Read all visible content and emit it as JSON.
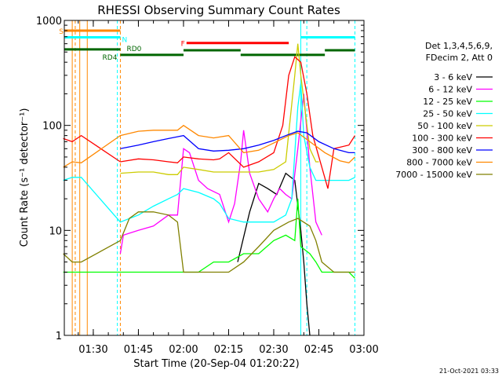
{
  "chart_data": {
    "type": "line",
    "title": "RHESSI Observing Summary Count Rates",
    "xlabel": "Start Time (20-Sep-04 01:20:22)",
    "ylabel": "Count Rate (s⁻¹ detector⁻¹)",
    "y_scale": "log",
    "ylim": [
      1,
      1000
    ],
    "xlim": [
      "01:20:22",
      "03:00:00"
    ],
    "x_ticks": [
      "01:30",
      "01:45",
      "02:00",
      "02:15",
      "02:30",
      "02:45",
      "03:00"
    ],
    "y_ticks": [
      "1",
      "10",
      "100",
      "1000"
    ],
    "grid": false,
    "legend_header": [
      "Det 1,3,4,5,6,9,",
      "FDecim 2, Att 0"
    ],
    "legend_position": "right",
    "footer": "21-Oct-2021 03:33",
    "series": [
      {
        "name": "3 - 6 keV",
        "color": "#000000",
        "points": [
          [
            "02:18",
            5
          ],
          [
            "02:22",
            15
          ],
          [
            "02:25",
            28
          ],
          [
            "02:28",
            25
          ],
          [
            "02:31",
            22
          ],
          [
            "02:34",
            35
          ],
          [
            "02:37",
            30
          ],
          [
            "02:39",
            10
          ],
          [
            "02:40",
            5
          ],
          [
            "02:41",
            2
          ],
          [
            "02:42",
            1
          ]
        ]
      },
      {
        "name": "6 - 12 keV",
        "color": "#ff00ff",
        "points": [
          [
            "01:39",
            6
          ],
          [
            "01:40",
            9
          ],
          [
            "01:45",
            10
          ],
          [
            "01:50",
            11
          ],
          [
            "01:55",
            14
          ],
          [
            "01:58",
            14
          ],
          [
            "02:00",
            60
          ],
          [
            "02:02",
            55
          ],
          [
            "02:05",
            30
          ],
          [
            "02:08",
            25
          ],
          [
            "02:12",
            22
          ],
          [
            "02:15",
            12
          ],
          [
            "02:17",
            18
          ],
          [
            "02:19",
            45
          ],
          [
            "02:20",
            90
          ],
          [
            "02:22",
            35
          ],
          [
            "02:25",
            20
          ],
          [
            "02:28",
            15
          ],
          [
            "02:30",
            20
          ],
          [
            "02:32",
            25
          ],
          [
            "02:34",
            22
          ],
          [
            "02:36",
            20
          ],
          [
            "02:38",
            60
          ],
          [
            "02:40",
            200
          ],
          [
            "02:42",
            40
          ],
          [
            "02:44",
            12
          ],
          [
            "02:46",
            9
          ]
        ]
      },
      {
        "name": "12 - 25 keV",
        "color": "#00ff00",
        "points": [
          [
            "01:20",
            4
          ],
          [
            "01:23",
            4
          ],
          [
            "01:26",
            4
          ],
          [
            "01:39",
            4
          ],
          [
            "01:45",
            4
          ],
          [
            "01:55",
            4
          ],
          [
            "02:00",
            4
          ],
          [
            "02:05",
            4
          ],
          [
            "02:10",
            5
          ],
          [
            "02:15",
            5
          ],
          [
            "02:20",
            6
          ],
          [
            "02:25",
            6
          ],
          [
            "02:30",
            8
          ],
          [
            "02:34",
            9
          ],
          [
            "02:37",
            8
          ],
          [
            "02:38",
            20
          ],
          [
            "02:39",
            7
          ],
          [
            "02:42",
            6
          ],
          [
            "02:44",
            5
          ],
          [
            "02:46",
            4
          ],
          [
            "02:50",
            4
          ],
          [
            "02:55",
            4
          ],
          [
            "02:57",
            3.5
          ]
        ]
      },
      {
        "name": "25 - 50 keV",
        "color": "#00ffff",
        "points": [
          [
            "01:20",
            30
          ],
          [
            "01:23",
            32
          ],
          [
            "01:26",
            32
          ],
          [
            "01:39",
            12
          ],
          [
            "01:45",
            14
          ],
          [
            "01:50",
            17
          ],
          [
            "01:55",
            20
          ],
          [
            "01:58",
            22
          ],
          [
            "02:00",
            25
          ],
          [
            "02:05",
            23
          ],
          [
            "02:10",
            20
          ],
          [
            "02:12",
            18
          ],
          [
            "02:15",
            13
          ],
          [
            "02:20",
            12
          ],
          [
            "02:25",
            12
          ],
          [
            "02:30",
            12
          ],
          [
            "02:34",
            14
          ],
          [
            "02:36",
            20
          ],
          [
            "02:38",
            150
          ],
          [
            "02:39",
            250
          ],
          [
            "02:40",
            80
          ],
          [
            "02:42",
            40
          ],
          [
            "02:44",
            30
          ],
          [
            "02:50",
            30
          ],
          [
            "02:55",
            30
          ],
          [
            "02:57",
            32
          ]
        ]
      },
      {
        "name": "50 - 100 keV",
        "color": "#cccc00",
        "points": [
          [
            "01:39",
            35
          ],
          [
            "01:45",
            36
          ],
          [
            "01:50",
            36
          ],
          [
            "01:55",
            34
          ],
          [
            "01:58",
            34
          ],
          [
            "02:00",
            40
          ],
          [
            "02:05",
            38
          ],
          [
            "02:10",
            36
          ],
          [
            "02:15",
            36
          ],
          [
            "02:20",
            36
          ],
          [
            "02:25",
            36
          ],
          [
            "02:30",
            38
          ],
          [
            "02:34",
            45
          ],
          [
            "02:37",
            300
          ],
          [
            "02:38",
            600
          ],
          [
            "02:39",
            300
          ],
          [
            "02:42",
            60
          ],
          [
            "02:44",
            45
          ],
          [
            "02:45",
            45
          ]
        ]
      },
      {
        "name": "100 - 300 keV",
        "color": "#ff0000",
        "points": [
          [
            "01:20",
            75
          ],
          [
            "01:23",
            70
          ],
          [
            "01:26",
            80
          ],
          [
            "01:39",
            45
          ],
          [
            "01:45",
            48
          ],
          [
            "01:50",
            47
          ],
          [
            "01:55",
            45
          ],
          [
            "01:58",
            44
          ],
          [
            "02:00",
            50
          ],
          [
            "02:05",
            48
          ],
          [
            "02:10",
            47
          ],
          [
            "02:12",
            48
          ],
          [
            "02:15",
            55
          ],
          [
            "02:20",
            40
          ],
          [
            "02:25",
            45
          ],
          [
            "02:30",
            55
          ],
          [
            "02:33",
            100
          ],
          [
            "02:35",
            300
          ],
          [
            "02:37",
            450
          ],
          [
            "02:39",
            400
          ],
          [
            "02:41",
            200
          ],
          [
            "02:43",
            80
          ],
          [
            "02:46",
            40
          ],
          [
            "02:48",
            25
          ],
          [
            "02:50",
            60
          ],
          [
            "02:55",
            65
          ],
          [
            "02:57",
            80
          ]
        ]
      },
      {
        "name": "300 - 800 keV",
        "color": "#0000ff",
        "points": [
          [
            "01:39",
            60
          ],
          [
            "01:45",
            65
          ],
          [
            "01:50",
            70
          ],
          [
            "01:55",
            75
          ],
          [
            "01:58",
            78
          ],
          [
            "02:00",
            80
          ],
          [
            "02:05",
            60
          ],
          [
            "02:10",
            57
          ],
          [
            "02:15",
            58
          ],
          [
            "02:20",
            60
          ],
          [
            "02:25",
            65
          ],
          [
            "02:30",
            72
          ],
          [
            "02:35",
            82
          ],
          [
            "02:38",
            88
          ],
          [
            "02:41",
            85
          ],
          [
            "02:45",
            70
          ],
          [
            "02:50",
            60
          ],
          [
            "02:55",
            55
          ],
          [
            "02:57",
            55
          ]
        ]
      },
      {
        "name": "800 - 7000 keV",
        "color": "#ff8800",
        "points": [
          [
            "01:20",
            40
          ],
          [
            "01:23",
            45
          ],
          [
            "01:26",
            44
          ],
          [
            "01:39",
            80
          ],
          [
            "01:45",
            88
          ],
          [
            "01:50",
            90
          ],
          [
            "01:55",
            90
          ],
          [
            "01:58",
            90
          ],
          [
            "02:00",
            100
          ],
          [
            "02:05",
            80
          ],
          [
            "02:10",
            76
          ],
          [
            "02:15",
            80
          ],
          [
            "02:20",
            55
          ],
          [
            "02:25",
            58
          ],
          [
            "02:30",
            68
          ],
          [
            "02:35",
            80
          ],
          [
            "02:38",
            85
          ],
          [
            "02:42",
            70
          ],
          [
            "02:47",
            55
          ],
          [
            "02:52",
            46
          ],
          [
            "02:55",
            44
          ],
          [
            "02:57",
            50
          ]
        ]
      },
      {
        "name": "7000 - 15000 keV",
        "color": "#808000",
        "points": [
          [
            "01:20",
            6
          ],
          [
            "01:23",
            5
          ],
          [
            "01:26",
            5
          ],
          [
            "01:39",
            8
          ],
          [
            "01:42",
            13
          ],
          [
            "01:45",
            15
          ],
          [
            "01:50",
            15
          ],
          [
            "01:55",
            14
          ],
          [
            "01:58",
            12
          ],
          [
            "02:00",
            4
          ],
          [
            "02:05",
            4
          ],
          [
            "02:10",
            4
          ],
          [
            "02:15",
            4
          ],
          [
            "02:20",
            5
          ],
          [
            "02:25",
            7
          ],
          [
            "02:30",
            10
          ],
          [
            "02:35",
            12
          ],
          [
            "02:38",
            13
          ],
          [
            "02:42",
            11
          ],
          [
            "02:44",
            8
          ],
          [
            "02:46",
            5
          ],
          [
            "02:50",
            4
          ],
          [
            "02:55",
            4
          ],
          [
            "02:57",
            4
          ]
        ]
      }
    ],
    "flag_bars": [
      {
        "label": "S",
        "color": "#ff8800",
        "start": "01:20:22",
        "end": "01:39:00",
        "value": 800
      },
      {
        "label": "N",
        "color": "#00ffff",
        "start": "01:20:22",
        "end": "01:39:00",
        "value": 690
      },
      {
        "label": "F",
        "color": "#ff0000",
        "start": "02:01:00",
        "end": "02:35:00",
        "value": 610
      },
      {
        "label": "RD0",
        "color": "#006600",
        "start": "01:20:22",
        "end": "01:39:00",
        "value": 530
      },
      {
        "label": "RD4",
        "color": "#006600",
        "start": "01:39:00",
        "end": "02:00:00",
        "value": 470
      },
      {
        "label": "",
        "color": "#006600",
        "start": "02:00:00",
        "end": "02:19:00",
        "value": 520
      },
      {
        "label": "",
        "color": "#006600",
        "start": "02:19:00",
        "end": "02:47:00",
        "value": 470
      },
      {
        "label": "",
        "color": "#006600",
        "start": "02:47:00",
        "end": "02:57:00",
        "value": 520
      },
      {
        "label": "",
        "color": "#00ffff",
        "start": "02:39:00",
        "end": "02:57:00",
        "value": 690
      }
    ],
    "markers": [
      {
        "time": "01:23:00",
        "color": "#ff8800",
        "style": "solid"
      },
      {
        "time": "01:24:00",
        "color": "#ff8800",
        "style": "dashed"
      },
      {
        "time": "01:25:30",
        "color": "#ff8800",
        "style": "solid"
      },
      {
        "time": "01:28:00",
        "color": "#ff8800",
        "style": "solid"
      },
      {
        "time": "01:38:00",
        "color": "#00ffff",
        "style": "dashed"
      },
      {
        "time": "01:39:00",
        "color": "#ff8800",
        "style": "dashed"
      },
      {
        "time": "02:39:00",
        "color": "#00ffff",
        "style": "solid"
      },
      {
        "time": "02:41:00",
        "color": "#00ffff",
        "style": "dashed"
      },
      {
        "time": "02:57:00",
        "color": "#00ffff",
        "style": "dashed"
      }
    ]
  }
}
